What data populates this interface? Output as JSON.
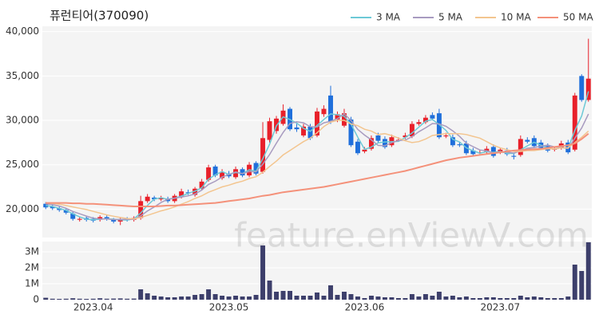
{
  "chart_data": [
    {
      "type": "candlestick",
      "title": "퓨런티어(370090)",
      "watermark": "feature.enViewV.com",
      "up_color": "#e8202a",
      "down_color": "#1f6fdb",
      "legend": "top-right",
      "grid": true,
      "ylim": [
        16800,
        40600
      ],
      "yticks": [
        {
          "value": 20000,
          "label": "20,000"
        },
        {
          "value": 25000,
          "label": "25,000"
        },
        {
          "value": 30000,
          "label": "30,000"
        },
        {
          "value": 35000,
          "label": "35,000"
        },
        {
          "value": 40000,
          "label": "40,000"
        }
      ],
      "open": [
        20600,
        20300,
        20100,
        19900,
        19500,
        18800,
        19000,
        18900,
        18800,
        19100,
        18800,
        18600,
        18900,
        18800,
        19000,
        20900,
        21300,
        21100,
        21200,
        20900,
        21400,
        21900,
        21600,
        22300,
        23300,
        24800,
        23500,
        24000,
        23600,
        24500,
        23800,
        25200,
        24200,
        27800,
        28800,
        29600,
        31300,
        29200,
        28300,
        29300,
        28300,
        30700,
        32800,
        30100,
        29400,
        30100,
        27600,
        26500,
        26800,
        28300,
        27900,
        27200,
        27800,
        28100,
        28200,
        29600,
        29800,
        30600,
        30800,
        28200,
        28100,
        27300,
        27400,
        26600,
        26400,
        26400,
        27000,
        26400,
        26600,
        26000,
        26100,
        27800,
        28000,
        27500,
        27100,
        26700,
        26900,
        27500,
        26700,
        35000,
        32300
      ],
      "high": [
        20800,
        20500,
        20300,
        20100,
        19700,
        19100,
        19200,
        19100,
        19300,
        19300,
        19000,
        19100,
        19100,
        19200,
        21500,
        21700,
        21500,
        21500,
        21400,
        21700,
        22300,
        22200,
        22500,
        23400,
        25000,
        25000,
        24500,
        24300,
        24800,
        24700,
        25300,
        25400,
        29800,
        30300,
        30500,
        31800,
        31500,
        29600,
        29600,
        29600,
        31400,
        31700,
        33900,
        31000,
        31300,
        30400,
        27900,
        27000,
        28300,
        28600,
        28200,
        28400,
        28100,
        28600,
        29900,
        30100,
        30600,
        30900,
        31300,
        28600,
        28400,
        27600,
        27700,
        26900,
        26700,
        27100,
        27300,
        26900,
        26900,
        26300,
        28300,
        28100,
        28300,
        27800,
        27400,
        27000,
        27700,
        27800,
        33100,
        35200,
        39200
      ],
      "low": [
        20000,
        19900,
        19700,
        19400,
        18700,
        18600,
        18600,
        18500,
        18600,
        18700,
        18400,
        18200,
        18600,
        18600,
        18800,
        20700,
        20900,
        20900,
        20700,
        20700,
        21200,
        21600,
        21400,
        22100,
        23100,
        23600,
        23300,
        23500,
        23400,
        23600,
        23600,
        23800,
        24000,
        27500,
        28500,
        29400,
        28800,
        28700,
        28100,
        27800,
        28100,
        30400,
        29600,
        29800,
        29200,
        27000,
        26100,
        26300,
        26600,
        27500,
        26800,
        27000,
        27600,
        27900,
        28000,
        29400,
        29600,
        30000,
        27900,
        28000,
        27000,
        27000,
        26100,
        26000,
        26200,
        26200,
        25800,
        26200,
        26000,
        25600,
        25900,
        27400,
        26900,
        26700,
        26400,
        26500,
        26700,
        26200,
        26500,
        32100,
        32100
      ],
      "close": [
        20200,
        20100,
        19900,
        19600,
        18900,
        18900,
        18800,
        18700,
        19100,
        18900,
        18600,
        18900,
        18800,
        19000,
        20900,
        21400,
        21100,
        21300,
        20900,
        21500,
        22000,
        21800,
        22300,
        23100,
        24700,
        23800,
        24200,
        23700,
        24500,
        23800,
        25000,
        24000,
        28000,
        29900,
        30200,
        31100,
        29000,
        29000,
        29300,
        28000,
        31000,
        31300,
        29900,
        30700,
        30800,
        27200,
        26300,
        26700,
        28000,
        27700,
        27000,
        28100,
        27800,
        28300,
        29600,
        29800,
        30300,
        30200,
        28100,
        28300,
        27200,
        27200,
        26300,
        26200,
        26400,
        26800,
        26000,
        26700,
        26200,
        25900,
        27900,
        27600,
        27100,
        26900,
        26600,
        26800,
        27400,
        26400,
        32800,
        32300,
        34700
      ],
      "series": [
        {
          "name": "3 MA",
          "color": "#6cc9d6",
          "values": [
            20400,
            20300,
            20070,
            19870,
            19470,
            19130,
            18870,
            18800,
            18870,
            18900,
            18870,
            18800,
            18770,
            18900,
            19570,
            20430,
            21130,
            21270,
            21100,
            21230,
            21470,
            21770,
            22030,
            22400,
            23370,
            23870,
            24230,
            23900,
            24130,
            24000,
            24430,
            24270,
            25670,
            27300,
            29370,
            30400,
            30100,
            29700,
            29100,
            28770,
            29430,
            30100,
            30730,
            30630,
            30470,
            29570,
            28100,
            26730,
            27000,
            27470,
            27570,
            27600,
            27630,
            28070,
            28570,
            29230,
            29900,
            30100,
            29530,
            28870,
            27870,
            27570,
            26900,
            26570,
            26300,
            26470,
            26400,
            26500,
            26300,
            26270,
            26670,
            27130,
            27530,
            27200,
            26870,
            26770,
            26930,
            26870,
            28870,
            30500,
            33270
          ]
        },
        {
          "name": "5 MA",
          "color": "#a89bc0",
          "values": [
            20600,
            20500,
            20350,
            20100,
            19740,
            19480,
            19220,
            18980,
            18880,
            18880,
            18820,
            18840,
            18860,
            18840,
            19240,
            19800,
            20240,
            20740,
            21120,
            21240,
            21360,
            21500,
            21700,
            22140,
            22780,
            23140,
            23620,
            23900,
            24180,
            24000,
            24240,
            24200,
            25060,
            26140,
            27420,
            28640,
            29640,
            29840,
            29720,
            29280,
            29260,
            29720,
            29900,
            30180,
            30740,
            29980,
            28980,
            28340,
            27800,
            27180,
            27140,
            27500,
            27720,
            27780,
            28160,
            28720,
            29160,
            29640,
            29600,
            29340,
            28820,
            28200,
            27420,
            27040,
            26660,
            26580,
            26340,
            26420,
            26420,
            26320,
            26540,
            26860,
            26940,
            27080,
            27220,
            27000,
            26960,
            26820,
            28000,
            29140,
            30720
          ]
        },
        {
          "name": "10 MA",
          "color": "#f3c58f",
          "values": [
            20700,
            20650,
            20550,
            20400,
            20250,
            20100,
            19950,
            19750,
            19550,
            19350,
            19200,
            19050,
            18950,
            18900,
            19050,
            19300,
            19550,
            19800,
            20000,
            20250,
            20550,
            20850,
            21200,
            21500,
            21900,
            22200,
            22500,
            22700,
            22950,
            23150,
            23450,
            23650,
            24150,
            24800,
            25400,
            26100,
            26600,
            27100,
            27600,
            28000,
            28600,
            29300,
            29800,
            30000,
            30000,
            29600,
            29400,
            29000,
            28800,
            28400,
            28500,
            28300,
            28000,
            27700,
            27500,
            27600,
            27900,
            28300,
            28400,
            28500,
            28500,
            28500,
            28400,
            28200,
            28000,
            27600,
            27200,
            26900,
            26700,
            26500,
            26500,
            26600,
            26600,
            26700,
            26800,
            26800,
            26900,
            26900,
            27500,
            28100,
            28800
          ]
        },
        {
          "name": "50 MA",
          "color": "#f4917a",
          "values": [
            20700,
            20700,
            20700,
            20700,
            20650,
            20650,
            20600,
            20600,
            20550,
            20500,
            20450,
            20400,
            20350,
            20300,
            20300,
            20300,
            20300,
            20350,
            20400,
            20400,
            20450,
            20500,
            20550,
            20600,
            20650,
            20700,
            20800,
            20900,
            21000,
            21100,
            21200,
            21350,
            21500,
            21600,
            21750,
            21900,
            22000,
            22100,
            22200,
            22300,
            22400,
            22500,
            22650,
            22800,
            22950,
            23100,
            23250,
            23400,
            23550,
            23700,
            23850,
            24000,
            24150,
            24300,
            24500,
            24700,
            24900,
            25100,
            25300,
            25500,
            25650,
            25800,
            25900,
            26000,
            26100,
            26200,
            26300,
            26400,
            26500,
            26600,
            26650,
            26700,
            26750,
            26800,
            26900,
            27000,
            27100,
            27200,
            27400,
            27900,
            28500
          ]
        }
      ]
    },
    {
      "type": "bar",
      "color": "#3d3f6b",
      "grid": true,
      "categories": [
        null,
        null,
        null,
        null,
        null,
        null,
        null,
        "2023.04",
        null,
        null,
        null,
        null,
        null,
        null,
        null,
        null,
        null,
        null,
        null,
        null,
        null,
        null,
        null,
        null,
        null,
        null,
        null,
        "2023.05",
        null,
        null,
        null,
        null,
        null,
        null,
        null,
        null,
        null,
        null,
        null,
        null,
        null,
        null,
        null,
        null,
        null,
        null,
        null,
        "2023.06",
        null,
        null,
        null,
        null,
        null,
        null,
        null,
        null,
        null,
        null,
        null,
        null,
        null,
        null,
        null,
        null,
        null,
        null,
        null,
        "2023.07",
        null,
        null,
        null,
        null,
        null,
        null,
        null,
        null,
        null,
        null,
        null,
        null,
        null
      ],
      "values": [
        120000,
        60000,
        50000,
        60000,
        90000,
        60000,
        50000,
        60000,
        90000,
        60000,
        70000,
        80000,
        60000,
        70000,
        650000,
        400000,
        250000,
        200000,
        150000,
        150000,
        200000,
        200000,
        300000,
        350000,
        650000,
        350000,
        250000,
        200000,
        250000,
        200000,
        200000,
        300000,
        3400000,
        1200000,
        500000,
        550000,
        550000,
        250000,
        250000,
        250000,
        450000,
        250000,
        900000,
        300000,
        500000,
        350000,
        200000,
        100000,
        250000,
        200000,
        150000,
        150000,
        100000,
        100000,
        350000,
        200000,
        350000,
        250000,
        500000,
        200000,
        250000,
        150000,
        200000,
        100000,
        100000,
        150000,
        150000,
        100000,
        100000,
        100000,
        250000,
        150000,
        200000,
        150000,
        100000,
        100000,
        100000,
        200000,
        2200000,
        1800000,
        3600000
      ],
      "ylim": [
        0,
        3650000
      ],
      "yticks": [
        0,
        {
          "value": 1000000,
          "label": "1M"
        },
        {
          "value": 2000000,
          "label": "2M"
        },
        {
          "value": 3000000,
          "label": "3M"
        }
      ]
    }
  ]
}
